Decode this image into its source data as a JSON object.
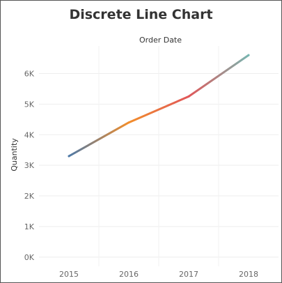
{
  "chart_data": {
    "type": "line",
    "title": "Discrete Line Chart",
    "column_header": "Order Date",
    "ylabel": "Quantity",
    "xlabel": "",
    "categories": [
      "2015",
      "2016",
      "2017",
      "2018"
    ],
    "series": [
      {
        "values": [
          3300,
          4400,
          5250,
          6600
        ]
      }
    ],
    "ylim": [
      -300,
      6900
    ],
    "yticks": [
      {
        "value": 0,
        "label": "0K"
      },
      {
        "value": 1000,
        "label": "1K"
      },
      {
        "value": 2000,
        "label": "2K"
      },
      {
        "value": 3000,
        "label": "3K"
      },
      {
        "value": 4000,
        "label": "4K"
      },
      {
        "value": 5000,
        "label": "5K"
      },
      {
        "value": 6000,
        "label": "6K"
      }
    ],
    "grid": true,
    "segment_colors": [
      "#4e79a7",
      "#f28e2b",
      "#e15759",
      "#76b7b2"
    ]
  }
}
